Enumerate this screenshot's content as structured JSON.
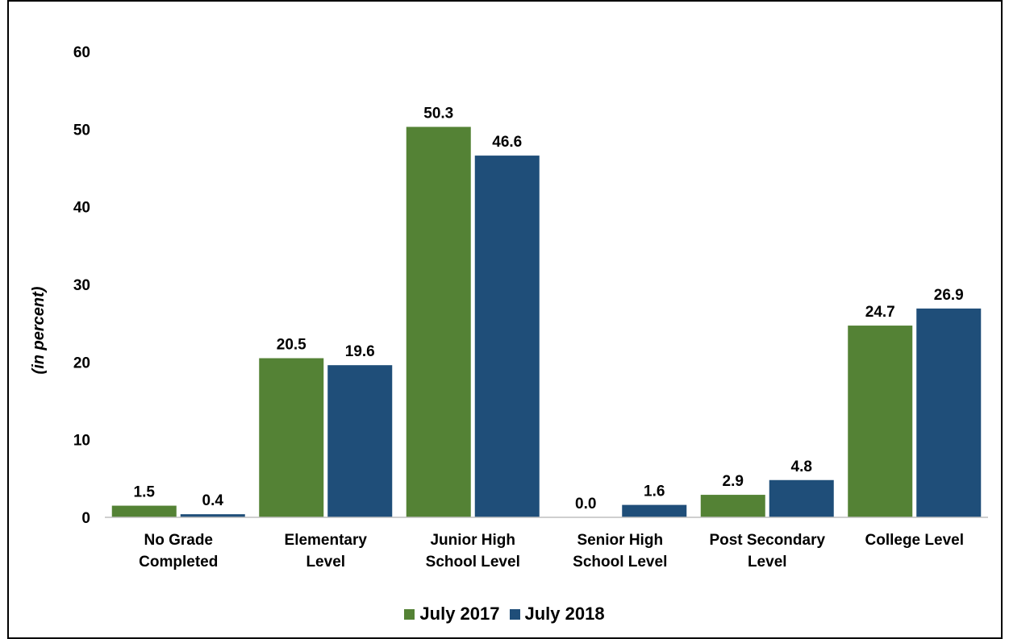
{
  "chart_data": {
    "type": "bar",
    "title": "",
    "xlabel": "",
    "ylabel": "(in percent)",
    "ylim": [
      0,
      60
    ],
    "yticks": [
      0,
      10,
      20,
      30,
      40,
      50,
      60
    ],
    "grid": false,
    "legend_position": "bottom",
    "categories": [
      [
        "No Grade",
        "Completed"
      ],
      [
        "Elementary",
        "Level"
      ],
      [
        "Junior High",
        "School Level"
      ],
      [
        "Senior High",
        "School Level"
      ],
      [
        "Post Secondary",
        "Level"
      ],
      [
        "College Level"
      ]
    ],
    "series": [
      {
        "name": "July 2017",
        "color": "#548235",
        "values": [
          1.5,
          20.5,
          50.3,
          0.0,
          2.9,
          24.7
        ],
        "labels": [
          "1.5",
          "20.5",
          "50.3",
          "0.0",
          "2.9",
          "24.7"
        ]
      },
      {
        "name": "July 2018",
        "color": "#1F4E79",
        "values": [
          0.4,
          19.6,
          46.6,
          1.6,
          4.8,
          26.9
        ],
        "labels": [
          "0.4",
          "19.6",
          "46.6",
          "1.6",
          "4.8",
          "26.9"
        ]
      }
    ]
  }
}
